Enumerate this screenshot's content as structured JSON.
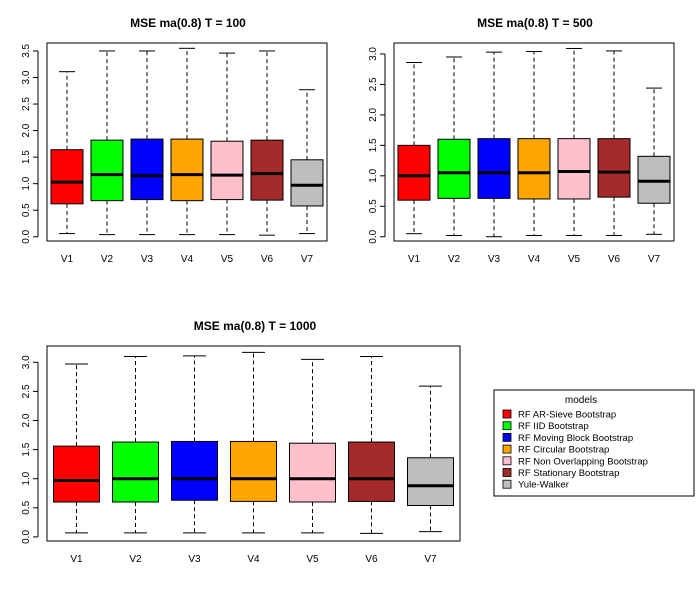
{
  "chart_data": [
    {
      "type": "boxplot",
      "title": "MSE ma(0.8) T = 100",
      "categories": [
        "V1",
        "V2",
        "V3",
        "V4",
        "V5",
        "V6",
        "V7"
      ],
      "yticks": [
        "0.0",
        "0.5",
        "1.0",
        "1.5",
        "2.0",
        "2.5",
        "3.0",
        "3.5"
      ],
      "ylim": [
        -0.08,
        3.65
      ],
      "boxes": [
        {
          "min": 0.06,
          "q1": 0.62,
          "median": 1.03,
          "q3": 1.64,
          "max": 3.11
        },
        {
          "min": 0.04,
          "q1": 0.68,
          "median": 1.17,
          "q3": 1.82,
          "max": 3.5
        },
        {
          "min": 0.04,
          "q1": 0.7,
          "median": 1.15,
          "q3": 1.84,
          "max": 3.5
        },
        {
          "min": 0.04,
          "q1": 0.68,
          "median": 1.17,
          "q3": 1.84,
          "max": 3.55
        },
        {
          "min": 0.04,
          "q1": 0.7,
          "median": 1.16,
          "q3": 1.8,
          "max": 3.46
        },
        {
          "min": 0.03,
          "q1": 0.69,
          "median": 1.19,
          "q3": 1.82,
          "max": 3.5
        },
        {
          "min": 0.06,
          "q1": 0.58,
          "median": 0.97,
          "q3": 1.45,
          "max": 2.77
        }
      ]
    },
    {
      "type": "boxplot",
      "title": "MSE ma(0.8) T = 500",
      "categories": [
        "V1",
        "V2",
        "V3",
        "V4",
        "V5",
        "V6",
        "V7"
      ],
      "yticks": [
        "0.0",
        "0.5",
        "1.0",
        "1.5",
        "2.0",
        "2.5",
        "3.0"
      ],
      "ylim": [
        -0.07,
        3.18
      ],
      "boxes": [
        {
          "min": 0.05,
          "q1": 0.6,
          "median": 1.0,
          "q3": 1.5,
          "max": 2.86
        },
        {
          "min": 0.02,
          "q1": 0.63,
          "median": 1.05,
          "q3": 1.6,
          "max": 2.95
        },
        {
          "min": 0.0,
          "q1": 0.63,
          "median": 1.05,
          "q3": 1.61,
          "max": 3.03
        },
        {
          "min": 0.02,
          "q1": 0.62,
          "median": 1.05,
          "q3": 1.61,
          "max": 3.04
        },
        {
          "min": 0.02,
          "q1": 0.62,
          "median": 1.07,
          "q3": 1.61,
          "max": 3.09
        },
        {
          "min": 0.02,
          "q1": 0.65,
          "median": 1.06,
          "q3": 1.61,
          "max": 3.05
        },
        {
          "min": 0.04,
          "q1": 0.55,
          "median": 0.91,
          "q3": 1.32,
          "max": 2.44
        }
      ]
    },
    {
      "type": "boxplot",
      "title": "MSE ma(0.8) T = 1000",
      "categories": [
        "V1",
        "V2",
        "V3",
        "V4",
        "V5",
        "V6",
        "V7"
      ],
      "yticks": [
        "0.0",
        "0.5",
        "1.0",
        "1.5",
        "2.0",
        "2.5",
        "3.0"
      ],
      "ylim": [
        -0.07,
        3.28
      ],
      "boxes": [
        {
          "min": 0.07,
          "q1": 0.6,
          "median": 0.97,
          "q3": 1.56,
          "max": 2.97
        },
        {
          "min": 0.07,
          "q1": 0.6,
          "median": 1.0,
          "q3": 1.63,
          "max": 3.1
        },
        {
          "min": 0.07,
          "q1": 0.63,
          "median": 1.0,
          "q3": 1.64,
          "max": 3.11
        },
        {
          "min": 0.07,
          "q1": 0.61,
          "median": 1.0,
          "q3": 1.64,
          "max": 3.17
        },
        {
          "min": 0.07,
          "q1": 0.6,
          "median": 1.0,
          "q3": 1.61,
          "max": 3.05
        },
        {
          "min": 0.06,
          "q1": 0.61,
          "median": 1.0,
          "q3": 1.63,
          "max": 3.1
        },
        {
          "min": 0.09,
          "q1": 0.54,
          "median": 0.88,
          "q3": 1.36,
          "max": 2.59
        }
      ]
    }
  ],
  "colors": [
    "#ff0000",
    "#00ff00",
    "#0000ff",
    "#ffa500",
    "#ffc0cb",
    "#a52a2a",
    "#bebebe"
  ],
  "legend": {
    "title": "models",
    "items": [
      "RF AR-Sieve Bootstrap",
      "RF IID Bootstrap",
      "RF Moving Block Bootstrap",
      "RF Circular Bootstrap",
      "RF Non Overlapping Bootstrap",
      "RF Stationary Bootstrap",
      "Yule-Walker"
    ]
  }
}
